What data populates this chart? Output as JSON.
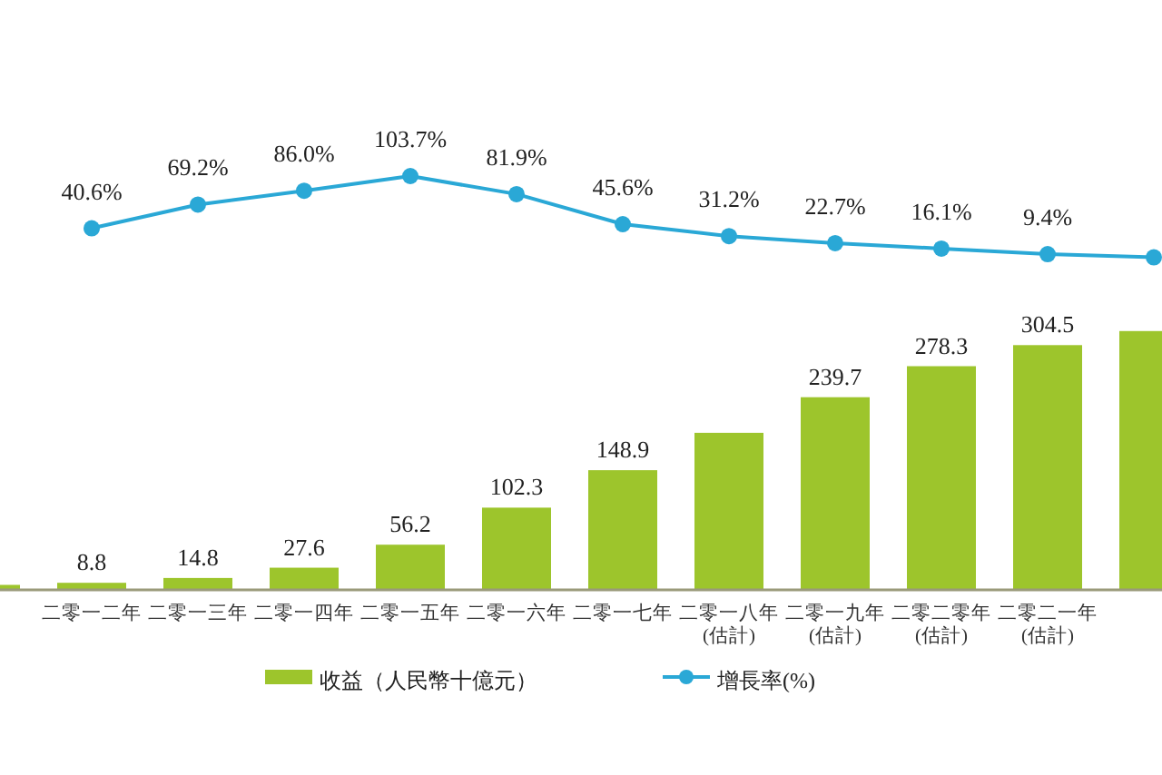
{
  "chart_data": [
    {
      "type": "bar",
      "categories": [
        null,
        "二零一二年",
        "二零一三年",
        "二零一四年",
        "二零一五年",
        "二零一六年",
        "二零一七年",
        "二零一八年\n(估計)",
        "二零一九年\n(估計)",
        "二零二零年\n(估計)",
        "二零二一年\n(估計)",
        null
      ],
      "series": [
        {
          "name": "收益（人民幣十億元）",
          "color": "#9dc52c",
          "values": [
            6.2,
            8.8,
            14.8,
            27.6,
            56.2,
            102.3,
            148.9,
            195.4,
            239.7,
            278.3,
            304.5,
            322
          ],
          "value_labels": [
            null,
            "8.8",
            "14.8",
            "27.6",
            "56.2",
            "102.3",
            "148.9",
            null,
            "239.7",
            "278.3",
            "304.5",
            null
          ]
        }
      ],
      "legend": "bottom"
    },
    {
      "type": "line",
      "categories": [
        null,
        null,
        null,
        null,
        null,
        null,
        null,
        null,
        null,
        null,
        null,
        null
      ],
      "series": [
        {
          "name": "增長率(%)",
          "color": "#2aa8d6",
          "values": [
            null,
            40.6,
            69.2,
            86.0,
            103.7,
            81.9,
            45.6,
            31.2,
            22.7,
            16.1,
            9.4,
            5.5
          ],
          "value_labels": [
            null,
            "40.6%",
            "69.2%",
            "86.0%",
            "103.7%",
            "81.9%",
            "45.6%",
            "31.2%",
            "22.7%",
            "16.1%",
            "9.4%",
            null
          ]
        }
      ],
      "marker": "circle",
      "legend": "bottom"
    }
  ]
}
